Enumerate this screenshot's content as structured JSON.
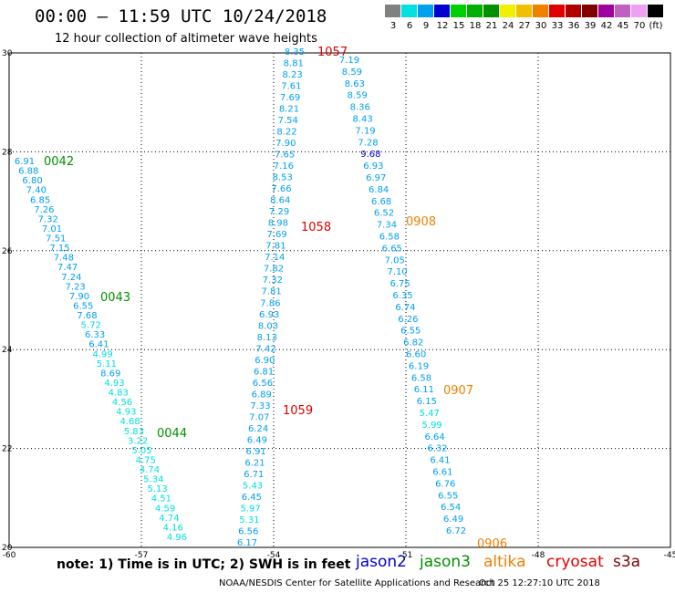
{
  "header": {
    "title": "00:00 – 11:59 UTC 10/24/2018",
    "subtitle": "12 hour collection of altimeter wave heights"
  },
  "color_scale": {
    "colors": [
      "#808080",
      "#00e0e0",
      "#00a0f0",
      "#0000d0",
      "#00d000",
      "#00b000",
      "#009000",
      "#f0f000",
      "#f0c000",
      "#f08000",
      "#e00000",
      "#b00000",
      "#800000",
      "#a000a0",
      "#c060c0",
      "#f0a0f0",
      "#000000"
    ],
    "labels": [
      "3",
      "6",
      "9",
      "12",
      "15",
      "18",
      "21",
      "24",
      "27",
      "30",
      "33",
      "36",
      "39",
      "42",
      "45",
      "70",
      "(ft)"
    ]
  },
  "axes": {
    "lat_ticks": [
      "30",
      "28",
      "26",
      "24",
      "22",
      "20"
    ],
    "lon_ticks": [
      "-60",
      "-57",
      "-54",
      "-51",
      "-48",
      "-45"
    ]
  },
  "tracks": {
    "track_a": [
      "6.91",
      "6.88",
      "6.80",
      "7.40",
      "6.85",
      "7.26",
      "7.32",
      "7.01",
      "7.51",
      "7.15",
      "7.48",
      "7.47",
      "7.24",
      "7.23",
      "7.90",
      "6.55",
      "7.68",
      "5.72",
      "6.33",
      "6.41",
      "4.99",
      "5.11",
      "8.69",
      "4.93",
      "4.83",
      "4.56",
      "4.93",
      "4.68",
      "5.83",
      "3.22",
      "5.05",
      "4.75",
      "4.74",
      "5.34",
      "5.13",
      "4.51",
      "4.59",
      "4.74",
      "4.16",
      "4.96"
    ],
    "track_b": [
      "8.35",
      "8.81",
      "8.23",
      "7.61",
      "7.69",
      "8.21",
      "7.54",
      "8.22",
      "7.90",
      "7.65",
      "7.16",
      "8.53",
      "7.66",
      "8.64",
      "7.29",
      "8.98",
      "7.69",
      "7.81",
      "7.14",
      "7.82",
      "7.32",
      "7.81",
      "7.86",
      "6.93",
      "8.03",
      "8.13",
      "7.42",
      "6.90",
      "6.81",
      "6.56",
      "6.89",
      "7.33",
      "7.07",
      "6.24",
      "6.49",
      "6.91",
      "6.21",
      "6.71",
      "5.43",
      "6.45",
      "5.97",
      "5.31",
      "6.56",
      "6.17"
    ],
    "track_c": [
      "7.19",
      "8.59",
      "8.63",
      "8.59",
      "8.36",
      "8.43",
      "7.19",
      "7.28",
      "9.68",
      "6.93",
      "6.97",
      "6.84",
      "6.68",
      "6.52",
      "7.34",
      "6.58",
      "6.65",
      "7.05",
      "7.10",
      "6.75",
      "6.35",
      "6.74",
      "6.26",
      "6.55",
      "6.82",
      "6.60",
      "6.19",
      "6.58",
      "6.11",
      "6.15",
      "5.47",
      "5.99",
      "6.64",
      "6.32",
      "6.41",
      "6.61",
      "6.76",
      "6.55",
      "6.54",
      "6.49",
      "6.72"
    ]
  },
  "time_labels": [
    {
      "text": "0042",
      "satellite": "jason3"
    },
    {
      "text": "0043",
      "satellite": "jason3"
    },
    {
      "text": "0044",
      "satellite": "jason3"
    },
    {
      "text": "1057",
      "satellite": "cryosat"
    },
    {
      "text": "1058",
      "satellite": "cryosat"
    },
    {
      "text": "1059",
      "satellite": "cryosat"
    },
    {
      "text": "0908",
      "satellite": "altika"
    },
    {
      "text": "0907",
      "satellite": "altika"
    },
    {
      "text": "0906",
      "satellite": "altika"
    }
  ],
  "footer": {
    "note": "note: 1) Time is in UTC; 2) SWH is in feet",
    "missions": [
      {
        "name": "jason2",
        "color": "#0000d0"
      },
      {
        "name": "jason3",
        "color": "#009000"
      },
      {
        "name": "altika",
        "color": "#f08000"
      },
      {
        "name": "cryosat",
        "color": "#e00000"
      },
      {
        "name": "s3a",
        "color": "#800000"
      }
    ],
    "credit": "NOAA/NESDIS Center for Satellite Applications and Research",
    "timestamp": "Oct 25 12:27:10 UTC 2018"
  }
}
